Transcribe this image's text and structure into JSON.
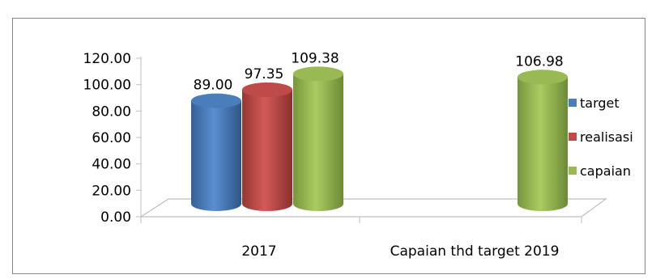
{
  "chart_data": {
    "type": "bar",
    "title": "",
    "xlabel": "",
    "ylabel": "",
    "categories": [
      "2017",
      "Capaian thd target 2019"
    ],
    "series": [
      {
        "name": "target",
        "values": [
          89.0,
          null
        ],
        "color": "#4a7ebb",
        "labels": [
          "89.00",
          ""
        ]
      },
      {
        "name": "realisasi",
        "values": [
          97.35,
          null
        ],
        "color": "#be4b48",
        "labels": [
          "97.35",
          ""
        ]
      },
      {
        "name": "capaian",
        "values": [
          109.38,
          106.98
        ],
        "color": "#98b954",
        "labels": [
          "109.38",
          "106.98"
        ]
      }
    ],
    "ylim": [
      0,
      120
    ],
    "yticks": [
      "0.00",
      "20.00",
      "40.00",
      "60.00",
      "80.00",
      "100.00",
      "120.00"
    ],
    "legend_position": "right",
    "grid": false,
    "style": "3d-cylinder"
  }
}
